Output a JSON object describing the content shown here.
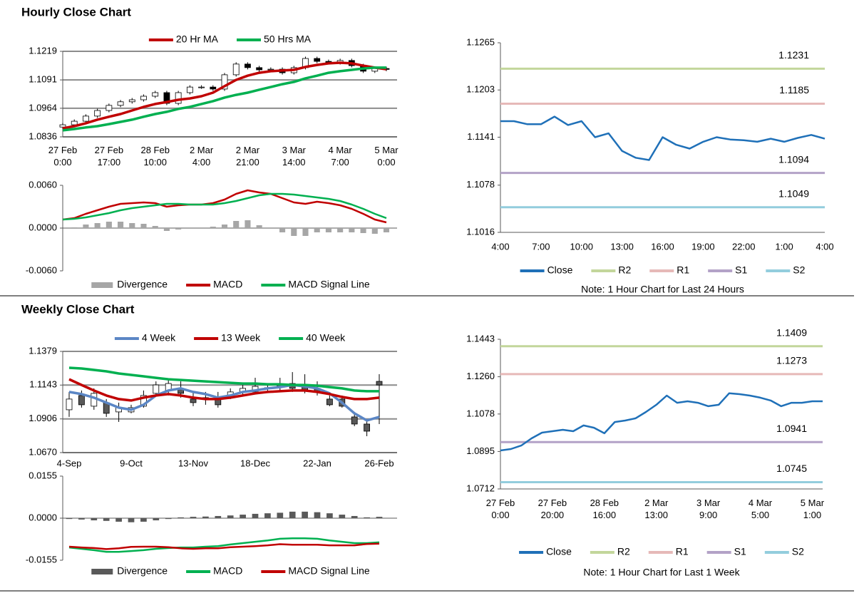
{
  "chart_data": [
    {
      "type": "candlestick",
      "title": "Hourly Close Chart",
      "categories": [
        "27 Feb\n0:00",
        null,
        null,
        null,
        "27 Feb\n17:00",
        null,
        null,
        null,
        "28 Feb\n10:00",
        null,
        null,
        null,
        "2 Mar\n4:00",
        null,
        null,
        null,
        "2 Mar\n21:00",
        null,
        null,
        null,
        "3 Mar\n14:00",
        null,
        null,
        null,
        "4 Mar\n7:00",
        null,
        null,
        null,
        "5 Mar\n0:00"
      ],
      "open": [
        1.088,
        1.089,
        1.0906,
        1.0929,
        1.0954,
        1.0977,
        1.0993,
        1.1002,
        1.1018,
        1.1034,
        1.0986,
        1.1034,
        1.1059,
        1.1059,
        1.105,
        1.1114,
        1.1162,
        1.1146,
        1.1136,
        1.1139,
        1.1123,
        1.1146,
        1.1187,
        1.1174,
        1.1168,
        1.1178,
        1.1155,
        1.113,
        1.1142
      ],
      "high": [
        1.0898,
        1.0914,
        1.0937,
        1.0962,
        1.0985,
        1.1001,
        1.101,
        1.1026,
        1.1042,
        1.1042,
        1.1042,
        1.1067,
        1.1067,
        1.1067,
        1.1122,
        1.117,
        1.117,
        1.1154,
        1.1147,
        1.1147,
        1.1154,
        1.1195,
        1.1195,
        1.1182,
        1.1186,
        1.1186,
        1.1163,
        1.115,
        1.115
      ],
      "low": [
        1.0872,
        1.0882,
        1.0898,
        1.0921,
        1.0946,
        1.0969,
        1.0985,
        1.0994,
        1.101,
        1.0978,
        1.0978,
        1.1026,
        1.1051,
        1.1042,
        1.1042,
        1.1106,
        1.1138,
        1.1128,
        1.1128,
        1.1115,
        1.1115,
        1.1138,
        1.1166,
        1.116,
        1.116,
        1.1147,
        1.1122,
        1.1122,
        1.113
      ],
      "close": [
        1.089,
        1.0906,
        1.0929,
        1.0954,
        1.0977,
        1.0993,
        1.1002,
        1.1018,
        1.1034,
        1.0986,
        1.1034,
        1.1059,
        1.1059,
        1.105,
        1.1114,
        1.1162,
        1.1146,
        1.1136,
        1.1139,
        1.1123,
        1.1146,
        1.1187,
        1.1174,
        1.1168,
        1.1178,
        1.1155,
        1.113,
        1.1142,
        1.1138
      ],
      "up_color": "#ffffff",
      "down_color": "#000000",
      "series": [
        {
          "name": "20 Hr MA",
          "color": "#c00000",
          "values": [
            1.0874,
            1.0884,
            1.0897,
            1.0913,
            1.0926,
            1.0938,
            1.0954,
            1.097,
            1.0983,
            1.0992,
            1.1002,
            1.1008,
            1.1018,
            1.1034,
            1.1063,
            1.1091,
            1.111,
            1.1123,
            1.113,
            1.1133,
            1.1136,
            1.1149,
            1.1158,
            1.1165,
            1.1168,
            1.1165,
            1.1155,
            1.1146,
            1.1139
          ]
        },
        {
          "name": "50 Hrs MA",
          "color": "#00b050",
          "values": [
            1.0865,
            1.0871,
            1.0878,
            1.0884,
            1.0893,
            1.0903,
            1.0913,
            1.0926,
            1.0938,
            1.0948,
            1.0961,
            1.097,
            1.0983,
            1.0996,
            1.1012,
            1.1024,
            1.1034,
            1.1047,
            1.1059,
            1.1072,
            1.1082,
            1.1098,
            1.111,
            1.1123,
            1.113,
            1.1136,
            1.1142,
            1.1146,
            1.1146
          ]
        }
      ],
      "ylim": [
        1.0836,
        1.1219
      ],
      "yticks": [
        1.0836,
        1.0964,
        1.1091,
        1.1219
      ],
      "grid": true
    },
    {
      "type": "macd",
      "series": [
        {
          "name": "Divergence",
          "color": "#a6a6a6",
          "style": "bar",
          "values": [
            0,
            0.0001,
            0.0005,
            0.0007,
            0.0009,
            0.0009,
            0.0007,
            0.0006,
            0.0003,
            -0.0004,
            -0.0002,
            0,
            0,
            0.0002,
            0.0005,
            0.001,
            0.0011,
            0.0004,
            0,
            -0.0006,
            -0.0011,
            -0.0011,
            -0.0006,
            -0.0006,
            -0.0006,
            -0.0006,
            -0.0007,
            -0.0008,
            -0.0006
          ]
        },
        {
          "name": "MACD",
          "color": "#c00000",
          "style": "line",
          "values": [
            0.0012,
            0.0014,
            0.002,
            0.0025,
            0.003,
            0.0034,
            0.0035,
            0.0036,
            0.0035,
            0.003,
            0.0032,
            0.0033,
            0.0033,
            0.0035,
            0.004,
            0.0048,
            0.0053,
            0.005,
            0.0048,
            0.0042,
            0.0036,
            0.0034,
            0.0037,
            0.0035,
            0.0032,
            0.0027,
            0.002,
            0.0012,
            0.0008
          ]
        },
        {
          "name": "MACD Signal Line",
          "color": "#00b050",
          "style": "line",
          "values": [
            0.0012,
            0.0013,
            0.0015,
            0.0018,
            0.0021,
            0.0025,
            0.0028,
            0.003,
            0.0032,
            0.0034,
            0.0034,
            0.0033,
            0.0033,
            0.0033,
            0.0035,
            0.0038,
            0.0042,
            0.0046,
            0.0048,
            0.0048,
            0.0047,
            0.0045,
            0.0043,
            0.0041,
            0.0038,
            0.0033,
            0.0027,
            0.002,
            0.0014
          ]
        }
      ],
      "ylim": [
        -0.006,
        0.006
      ],
      "yticks": [
        {
          "value": -0.006,
          "label": "-0.0060"
        },
        {
          "value": 0,
          "label": "0.0000"
        },
        {
          "value": 0.006,
          "label": "0.0060"
        }
      ],
      "grid": false
    },
    {
      "type": "levels",
      "categories": [
        "4:00",
        null,
        null,
        "7:00",
        null,
        null,
        "10:00",
        null,
        null,
        "13:00",
        null,
        null,
        "16:00",
        null,
        null,
        "19:00",
        null,
        null,
        "22:00",
        null,
        null,
        "1:00",
        null,
        null,
        "4:00"
      ],
      "series": [
        {
          "name": "Close",
          "color": "#1f70b8",
          "values": [
            1.1162,
            1.1162,
            1.1158,
            1.1158,
            1.1168,
            1.1157,
            1.1162,
            1.1141,
            1.1146,
            1.1123,
            1.1114,
            1.1111,
            1.1141,
            1.1131,
            1.1126,
            1.1135,
            1.1141,
            1.1138,
            1.1137,
            1.1135,
            1.1139,
            1.1135,
            1.114,
            1.1144,
            1.1139
          ]
        },
        {
          "name": "R2",
          "color": "#c3d69b",
          "level": 1.1231
        },
        {
          "name": "R1",
          "color": "#e6b9b8",
          "level": 1.1185
        },
        {
          "name": "S1",
          "color": "#b3a2c7",
          "level": 1.1094
        },
        {
          "name": "S2",
          "color": "#93cddd",
          "level": 1.1049
        }
      ],
      "note": "Note: 1 Hour Chart for Last 24 Hours",
      "ylim": [
        1.1016,
        1.1265
      ],
      "yticks": [
        1.1016,
        1.1078,
        1.1141,
        1.1203,
        1.1265
      ],
      "grid": false
    },
    {
      "type": "candlestick",
      "title": "Weekly Close Chart",
      "categories": [
        "4-Sep",
        null,
        null,
        null,
        null,
        "9-Oct",
        null,
        null,
        null,
        null,
        "13-Nov",
        null,
        null,
        null,
        null,
        "18-Dec",
        null,
        null,
        null,
        null,
        "22-Jan",
        null,
        null,
        null,
        null,
        "26-Feb"
      ],
      "open": [
        1.097,
        1.107,
        1.0995,
        1.102,
        1.0955,
        1.0955,
        1.0995,
        1.1085,
        1.1105,
        1.112,
        1.1045,
        1.1055,
        1.1045,
        1.107,
        1.1095,
        1.1095,
        1.112,
        1.1144,
        1.1154,
        1.1144,
        1.112,
        1.1045,
        1.1045,
        1.092,
        1.087,
        1.1169
      ],
      "high": [
        1.1095,
        1.1105,
        1.112,
        1.1045,
        1.102,
        1.1005,
        1.1105,
        1.1169,
        1.1179,
        1.1169,
        1.1095,
        1.1095,
        1.1095,
        1.112,
        1.1144,
        1.1194,
        1.1154,
        1.1194,
        1.1234,
        1.1219,
        1.1169,
        1.107,
        1.107,
        1.0955,
        1.0895,
        1.1219
      ],
      "low": [
        1.092,
        1.0985,
        1.097,
        1.092,
        1.0885,
        1.0945,
        1.0985,
        1.107,
        1.107,
        1.1055,
        1.0995,
        1.1005,
        1.0985,
        1.1045,
        1.107,
        1.1085,
        1.1095,
        1.1105,
        1.1095,
        1.1085,
        1.107,
        1.0995,
        1.0985,
        1.0855,
        1.0785,
        1.087
      ],
      "close": [
        1.1045,
        1.1005,
        1.1085,
        1.0945,
        1.0985,
        1.0985,
        1.107,
        1.1144,
        1.1154,
        1.1085,
        1.102,
        1.1045,
        1.1005,
        1.1095,
        1.112,
        1.1134,
        1.1125,
        1.1134,
        1.112,
        1.1105,
        1.1095,
        1.1005,
        1.0995,
        1.087,
        1.082,
        1.1144
      ],
      "up_color": "#ffffff",
      "down_color": "#595959",
      "series": [
        {
          "name": "4 Week",
          "color": "#5b86c5",
          "values": [
            1.1095,
            1.108,
            1.1055,
            1.102,
            1.0985,
            1.097,
            1.1005,
            1.107,
            1.1105,
            1.112,
            1.1095,
            1.108,
            1.1055,
            1.107,
            1.1095,
            1.1105,
            1.112,
            1.1129,
            1.1144,
            1.1134,
            1.112,
            1.1085,
            1.102,
            1.0945,
            1.0895,
            1.092
          ]
        },
        {
          "name": "13 Week",
          "color": "#c00000",
          "values": [
            1.1184,
            1.1144,
            1.1105,
            1.107,
            1.1045,
            1.1035,
            1.1055,
            1.107,
            1.108,
            1.107,
            1.1055,
            1.1045,
            1.1045,
            1.1055,
            1.107,
            1.1085,
            1.1095,
            1.11,
            1.1105,
            1.1105,
            1.1095,
            1.108,
            1.106,
            1.1045,
            1.1045,
            1.1055
          ]
        },
        {
          "name": "40 Week",
          "color": "#00b050",
          "values": [
            1.1264,
            1.1259,
            1.1249,
            1.1239,
            1.1224,
            1.1214,
            1.1204,
            1.1194,
            1.1184,
            1.1179,
            1.1174,
            1.1169,
            1.1164,
            1.1159,
            1.1154,
            1.1154,
            1.1149,
            1.1149,
            1.1144,
            1.1144,
            1.1139,
            1.1129,
            1.112,
            1.1105,
            1.11,
            1.11
          ]
        }
      ],
      "ylim": [
        1.067,
        1.1379
      ],
      "yticks": [
        {
          "value": 1.067,
          "label": "1.0670"
        },
        1.0906,
        1.1143,
        1.1379
      ],
      "grid": true
    },
    {
      "type": "macd",
      "series": [
        {
          "name": "Divergence",
          "color": "#595959",
          "style": "bar",
          "values": [
            -0.0003,
            -0.0005,
            -0.0008,
            -0.001,
            -0.0013,
            -0.0015,
            -0.0013,
            -0.0008,
            -0.0003,
            0.0003,
            0.0005,
            0.0006,
            0.0008,
            0.001,
            0.0013,
            0.0016,
            0.0018,
            0.002,
            0.0024,
            0.0024,
            0.0022,
            0.0018,
            0.0013,
            0.0008,
            0.0003,
            0.0005
          ]
        },
        {
          "name": "MACD",
          "color": "#00b050",
          "style": "line",
          "values": [
            -0.0108,
            -0.0113,
            -0.0118,
            -0.0124,
            -0.0124,
            -0.0121,
            -0.0118,
            -0.0113,
            -0.011,
            -0.0108,
            -0.0108,
            -0.0105,
            -0.0103,
            -0.0097,
            -0.0092,
            -0.0087,
            -0.0082,
            -0.0076,
            -0.0074,
            -0.0074,
            -0.0076,
            -0.0082,
            -0.0087,
            -0.0092,
            -0.0092,
            -0.0089
          ]
        },
        {
          "name": "MACD Signal Line",
          "color": "#c00000",
          "style": "line",
          "values": [
            -0.0105,
            -0.0108,
            -0.011,
            -0.0114,
            -0.0111,
            -0.0106,
            -0.0105,
            -0.0105,
            -0.0107,
            -0.0111,
            -0.0113,
            -0.0111,
            -0.0111,
            -0.0107,
            -0.0105,
            -0.0103,
            -0.01,
            -0.0096,
            -0.0098,
            -0.0098,
            -0.0098,
            -0.01,
            -0.01,
            -0.01,
            -0.0095,
            -0.0094
          ]
        }
      ],
      "ylim": [
        -0.0155,
        0.0155
      ],
      "yticks": [
        -0.0155,
        {
          "value": 0,
          "label": "0.0000"
        },
        0.0155
      ],
      "grid": false
    },
    {
      "type": "levels",
      "categories": [
        "27 Feb\n0:00",
        null,
        null,
        null,
        null,
        "27 Feb\n20:00",
        null,
        null,
        null,
        null,
        "28 Feb\n16:00",
        null,
        null,
        null,
        null,
        "2 Mar\n13:00",
        null,
        null,
        null,
        null,
        "3 Mar\n9:00",
        null,
        null,
        null,
        null,
        "4 Mar\n5:00",
        null,
        null,
        null,
        null,
        "5 Mar\n1:00",
        null
      ],
      "series": [
        {
          "name": "Close",
          "color": "#1f70b8",
          "values": [
            1.09,
            1.0907,
            1.0924,
            1.0959,
            1.0987,
            1.0994,
            1.1001,
            1.0994,
            1.1022,
            1.1011,
            1.0984,
            1.1039,
            1.1046,
            1.1057,
            1.1088,
            1.1123,
            1.1168,
            1.1133,
            1.114,
            1.1133,
            1.1116,
            1.1123,
            1.1179,
            1.1175,
            1.1168,
            1.1158,
            1.1144,
            1.1116,
            1.1133,
            1.1133,
            1.114,
            1.114
          ]
        },
        {
          "name": "R2",
          "color": "#c3d69b",
          "level": 1.1409
        },
        {
          "name": "R1",
          "color": "#e6b9b8",
          "level": 1.1273
        },
        {
          "name": "S1",
          "color": "#b3a2c7",
          "level": 1.0941
        },
        {
          "name": "S2",
          "color": "#93cddd",
          "level": 1.0745
        }
      ],
      "note": "Note: 1 Hour Chart for Last 1 Week",
      "ylim": [
        1.0712,
        1.1443
      ],
      "yticks": [
        1.0712,
        1.0895,
        1.1078,
        {
          "value": 1.126,
          "label": "1.1260"
        },
        1.1443
      ],
      "grid": false
    }
  ]
}
